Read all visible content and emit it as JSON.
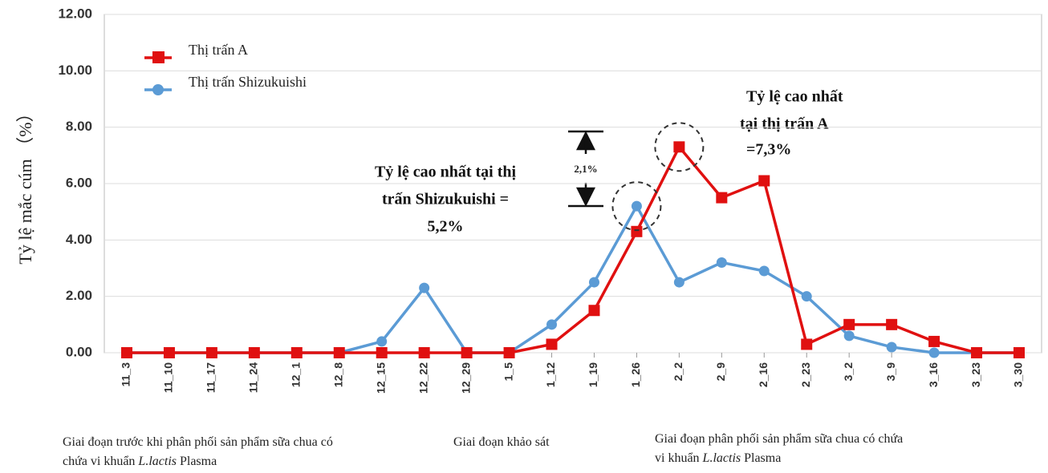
{
  "chart_data": {
    "type": "line",
    "y_label": "Tỷ lệ mắc cúm （%）",
    "categories": [
      "11_3",
      "11_10",
      "11_17",
      "11_24",
      "12_1",
      "12_8",
      "12_15",
      "12_22",
      "12_29",
      "1_5",
      "1_12",
      "1_19",
      "1_26",
      "2_2",
      "2_9",
      "2_16",
      "2_23",
      "3_2",
      "3_9",
      "3_16",
      "3_23",
      "3_30"
    ],
    "series": [
      {
        "name": "Thị trấn A",
        "color": "#e01010",
        "marker": "square",
        "values": [
          0,
          0,
          0,
          0,
          0,
          0,
          0,
          0,
          0,
          0,
          0.3,
          1.5,
          4.3,
          7.3,
          5.5,
          6.1,
          0.3,
          1.0,
          1.0,
          0.4,
          0,
          0
        ]
      },
      {
        "name": "Thị trấn Shizukuishi",
        "color": "#5b9bd5",
        "marker": "circle",
        "values": [
          0,
          0,
          0,
          0,
          0,
          0,
          0.4,
          2.3,
          0,
          0,
          1.0,
          2.5,
          5.2,
          2.5,
          3.2,
          2.9,
          2.0,
          0.6,
          0.2,
          0,
          0,
          0
        ]
      }
    ],
    "ylim": [
      0,
      12
    ],
    "yticks": [
      {
        "value": 0,
        "label": "0.00"
      },
      {
        "value": 2,
        "label": "2.00"
      },
      {
        "value": 4,
        "label": "4.00"
      },
      {
        "value": 6,
        "label": "6.00"
      },
      {
        "value": 8,
        "label": "8.00"
      },
      {
        "value": 10,
        "label": "10.00"
      },
      {
        "value": 12,
        "label": "12.00"
      }
    ],
    "grid": true,
    "annotations": {
      "shizukuishi_peak": [
        "Tỷ lệ cao nhất tại thị",
        "trấn Shizukuishi =",
        "5,2%"
      ],
      "a_peak": [
        "Tỷ lệ cao nhất",
        "tại thị trấn A",
        "=7,3%"
      ],
      "difference": "2,1%"
    },
    "notes": [
      [
        [
          "Giai đoạn trước khi phân phối sản phẩm sữa chua có"
        ],
        [
          "chứa vi khuẩn ",
          "L.lactis",
          " Plasma"
        ]
      ],
      [
        [
          "Giai đoạn khảo sát"
        ]
      ],
      [
        [
          "Giai đoạn phân phối sản phẩm sữa chua có chứa"
        ],
        [
          "vi khuẩn ",
          "L.lactis",
          " Plasma"
        ]
      ]
    ]
  }
}
